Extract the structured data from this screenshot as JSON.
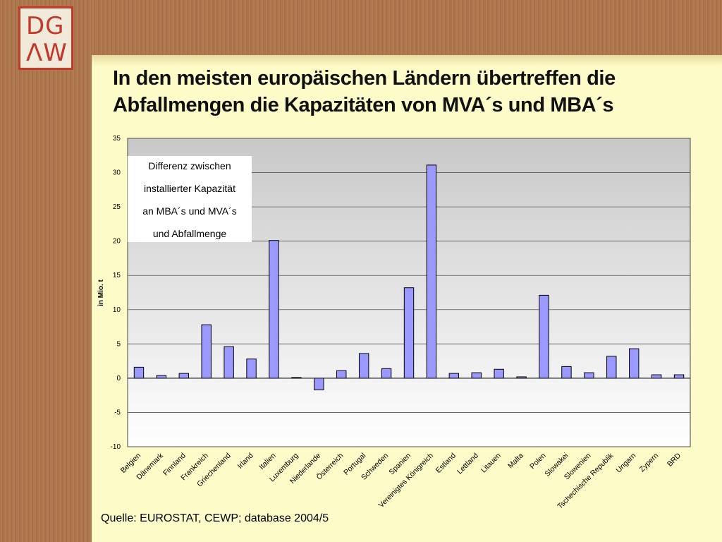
{
  "logo": {
    "line1": "DG",
    "line2": "ΛW"
  },
  "title_line1": "In den meisten europäischen Ländern übertreffen die",
  "title_line2": "Abfallmengen die Kapazitäten von MVA´s und MBA´s",
  "source": "Quelle: EUROSTAT, CEWP; database 2004/5",
  "colors": {
    "bar": "#9999ff",
    "bar_stroke": "#000000",
    "plot_top": "#c8c8c8",
    "plot_bottom": "#ffffff",
    "panel": "#fdfcc8",
    "logo_red": "#c0392b"
  },
  "chart_data": {
    "type": "bar",
    "ylabel": "in Mio. t",
    "ylim": [
      -10,
      35
    ],
    "yticks": [
      35,
      30,
      25,
      20,
      15,
      10,
      5,
      0,
      -5,
      -10
    ],
    "grid": true,
    "legend_box": [
      "Differenz zwischen",
      "installierter Kapazität",
      "an MBA´s und MVA´s",
      "und Abfallmenge"
    ],
    "categories": [
      "Belgien",
      "Dänemark",
      "Finnland",
      "Frankreich",
      "Griechenland",
      "Irland",
      "Italien",
      "Luxemburg",
      "Niederlande",
      "Österreich",
      "Portugal",
      "Schweden",
      "Spanien",
      "Vereinigtes Königreich",
      "Estland",
      "Lettland",
      "Litauen",
      "Malta",
      "Polen",
      "Slowakei",
      "Slowenien",
      "Tschechische Republik",
      "Ungarn",
      "Zypern",
      "BRD"
    ],
    "values": [
      1.6,
      0.4,
      0.7,
      7.8,
      4.6,
      2.8,
      20.1,
      0.1,
      -1.7,
      1.1,
      3.6,
      1.4,
      13.2,
      31.1,
      0.7,
      0.8,
      1.3,
      0.2,
      12.1,
      1.7,
      0.8,
      3.2,
      4.3,
      0.5,
      0.5
    ]
  }
}
